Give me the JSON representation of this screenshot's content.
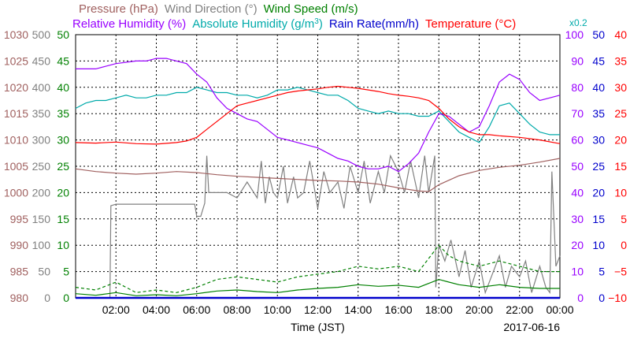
{
  "chart_data": {
    "type": "line",
    "xlabel": "Time (JST)",
    "date": "2017-06-16",
    "x_ticks": [
      "02:00",
      "04:00",
      "06:00",
      "08:00",
      "10:00",
      "12:00",
      "14:00",
      "16:00",
      "18:00",
      "20:00",
      "22:00",
      "00:00"
    ],
    "x_range_hours": [
      0,
      24
    ],
    "grid": true,
    "legend_row1": [
      {
        "name": "Pressure (hPa)",
        "color": "#a0605f"
      },
      {
        "name": "Wind Direction (°)",
        "color": "#808080"
      },
      {
        "name": "Wind Speed (m/s)",
        "color": "#008000"
      }
    ],
    "legend_row2": [
      {
        "name": "Relative Humidity (%)",
        "color": "#9900ff"
      },
      {
        "name": "Absolute Humidity (g/m³)",
        "color": "#00aaaa",
        "base": "Absolute Humidity (g/m",
        "sup": "3",
        "close": ")"
      },
      {
        "name": "Rain Rate(mm/h)",
        "color": "#0000cc"
      },
      {
        "name": "Temperature (°C)",
        "color": "#ff0000"
      }
    ],
    "abs_hum_scale_note": "x0.2",
    "axes": {
      "pressure": {
        "color": "#a0605f",
        "ylim": [
          980,
          1030
        ],
        "ticks": [
          "1030",
          "1025",
          "1020",
          "1015",
          "1010",
          "1005",
          "1000",
          "995",
          "990",
          "985",
          "980"
        ]
      },
      "wind_direction": {
        "color": "#808080",
        "ylim": [
          0,
          500
        ],
        "ticks": [
          "500",
          "450",
          "400",
          "350",
          "300",
          "250",
          "200",
          "150",
          "100",
          "50",
          "0"
        ]
      },
      "wind_speed": {
        "color": "#008000",
        "ylim": [
          0,
          50
        ],
        "ticks": [
          "50",
          "45",
          "40",
          "35",
          "30",
          "25",
          "20",
          "15",
          "10",
          "5",
          "0"
        ]
      },
      "relative_humidity": {
        "color": "#9900ff",
        "ylim": [
          0,
          100
        ],
        "ticks": [
          "100",
          "90",
          "80",
          "70",
          "60",
          "50",
          "40",
          "30",
          "20",
          "10",
          "0"
        ]
      },
      "rain_rate": {
        "color": "#0000cc",
        "ylim": [
          0,
          50
        ],
        "ticks": [
          "50",
          "45",
          "40",
          "35",
          "30",
          "25",
          "20",
          "15",
          "10",
          "5",
          "0"
        ]
      },
      "temperature": {
        "color": "#ff0000",
        "ylim": [
          -10,
          40
        ],
        "ticks": [
          "40",
          "35",
          "30",
          "25",
          "20",
          "15",
          "10",
          "5",
          "0",
          "−5",
          "−10"
        ]
      }
    },
    "series": [
      {
        "name": "Relative Humidity (%)",
        "axis": "relative_humidity",
        "color": "#9900ff",
        "x": [
          0,
          1,
          1.5,
          2,
          3,
          3.5,
          4,
          4.5,
          5,
          5.5,
          6,
          6.5,
          7,
          7.5,
          8,
          8.5,
          9,
          9.5,
          10,
          10.5,
          11,
          11.5,
          12,
          12.5,
          13,
          13.5,
          14,
          14.5,
          15,
          15.5,
          16,
          16.5,
          17,
          17.5,
          18,
          18.5,
          19,
          19.5,
          20,
          20.5,
          21,
          21.5,
          22,
          22.5,
          23,
          23.5,
          24
        ],
        "y": [
          87,
          87,
          88,
          89,
          90,
          90,
          91,
          91,
          90,
          89,
          85,
          82,
          76,
          72,
          70,
          68,
          67,
          64,
          61,
          60,
          59,
          58,
          57,
          55,
          53,
          52,
          50,
          49,
          49,
          50,
          48,
          51,
          55,
          63,
          70,
          69,
          66,
          63,
          65,
          73,
          82,
          85,
          83,
          78,
          75,
          76,
          77
        ]
      },
      {
        "name": "Absolute Humidity (g/m³) x0.2",
        "axis": "relative_humidity",
        "color": "#00aaaa",
        "x": [
          0,
          0.5,
          1,
          1.5,
          2,
          2.5,
          3,
          3.5,
          4,
          4.5,
          5,
          5.5,
          6,
          6.5,
          7,
          7.5,
          8,
          8.5,
          9,
          9.5,
          10,
          10.5,
          11,
          11.5,
          12,
          12.5,
          13,
          13.5,
          14,
          14.5,
          15,
          15.5,
          16,
          16.5,
          17,
          17.5,
          18,
          18.5,
          19,
          19.5,
          20,
          20.5,
          21,
          21.5,
          22,
          22.5,
          23,
          23.5,
          24
        ],
        "y": [
          72,
          74,
          75,
          75,
          76,
          77,
          76,
          76,
          77,
          77,
          78,
          78,
          80,
          79,
          78,
          78,
          77,
          77,
          76,
          77,
          79,
          79,
          80,
          79,
          78,
          77,
          77,
          75,
          72,
          71,
          70,
          71,
          70,
          70,
          69,
          69,
          71,
          67,
          63,
          61,
          59,
          65,
          73,
          74,
          70,
          66,
          63,
          62,
          62
        ]
      },
      {
        "name": "Temperature (°C)",
        "axis": "temperature",
        "color": "#ff0000",
        "x": [
          0,
          1,
          2,
          3,
          4,
          5,
          5.5,
          6,
          6.5,
          7,
          7.5,
          8,
          8.5,
          9,
          9.5,
          10,
          10.5,
          11,
          11.5,
          12,
          12.5,
          13,
          13.5,
          14,
          14.5,
          15,
          15.5,
          16,
          16.5,
          17,
          17.5,
          18,
          18.5,
          19,
          19.5,
          20,
          20.5,
          21,
          22,
          23,
          24
        ],
        "y": [
          19.5,
          19.4,
          19.6,
          19.3,
          19.2,
          19.5,
          19.8,
          20.5,
          22,
          23.5,
          25,
          26.5,
          27,
          27.5,
          28,
          28.5,
          29,
          29.3,
          29.5,
          29.7,
          30,
          30.2,
          30,
          29.8,
          29.5,
          29.2,
          28.8,
          28.5,
          28.3,
          28,
          27.5,
          26,
          24,
          22.5,
          21.5,
          21,
          21,
          20.8,
          20.5,
          20,
          19.3
        ]
      },
      {
        "name": "Pressure (hPa)",
        "axis": "pressure",
        "color": "#a0605f",
        "x": [
          0,
          1,
          2,
          3,
          4,
          5,
          6,
          7,
          8,
          9,
          10,
          11,
          12,
          13,
          14,
          15,
          16,
          17,
          17.5,
          18,
          19,
          20,
          21,
          22,
          23,
          24
        ],
        "y": [
          1004.5,
          1004,
          1003.7,
          1003.5,
          1003.7,
          1004,
          1003.8,
          1003.4,
          1003.1,
          1002.9,
          1002.7,
          1002.5,
          1002.3,
          1002.2,
          1002,
          1001.6,
          1000.9,
          1000.3,
          1000.2,
          1001.5,
          1003.2,
          1004.2,
          1004.8,
          1005.2,
          1005.8,
          1006.5
        ]
      },
      {
        "name": "Wind Direction (°)",
        "axis": "wind_direction",
        "color": "#808080",
        "x": [
          0,
          1.7,
          1.75,
          2,
          3,
          4,
          5,
          5.9,
          6.0,
          6.2,
          6.4,
          6.5,
          6.6,
          6.7,
          7,
          7.5,
          8,
          8.5,
          9,
          9.2,
          9.4,
          9.6,
          9.8,
          10,
          10.3,
          10.5,
          10.8,
          11,
          11.3,
          11.6,
          12,
          12.3,
          12.6,
          13,
          13.3,
          13.6,
          14,
          14.3,
          14.6,
          15,
          15.3,
          15.6,
          16,
          16.3,
          16.6,
          17,
          17.3,
          17.5,
          17.8,
          17.85,
          18,
          18.3,
          18.6,
          19,
          19.3,
          19.6,
          20,
          20.3,
          20.6,
          21,
          21.3,
          21.6,
          22,
          22.3,
          22.6,
          23,
          23.3,
          23.5,
          23.6,
          23.8,
          24
        ],
        "y": [
          0,
          0,
          175,
          178,
          178,
          178,
          178,
          178,
          155,
          155,
          180,
          270,
          200,
          200,
          200,
          200,
          190,
          220,
          190,
          260,
          180,
          230,
          200,
          190,
          250,
          180,
          230,
          190,
          200,
          260,
          170,
          240,
          200,
          220,
          170,
          250,
          200,
          260,
          180,
          240,
          200,
          270,
          240,
          200,
          260,
          190,
          270,
          200,
          270,
          20,
          100,
          70,
          110,
          40,
          90,
          20,
          70,
          10,
          40,
          80,
          20,
          60,
          40,
          70,
          10,
          60,
          20,
          10,
          240,
          60,
          80
        ]
      },
      {
        "name": "Wind Speed (m/s)",
        "axis": "wind_speed",
        "color": "#008000",
        "style": "dashed",
        "x": [
          0,
          1,
          2,
          3,
          4,
          5,
          6,
          7,
          8,
          9,
          10,
          11,
          12,
          13,
          14,
          15,
          16,
          17,
          18,
          18.5,
          19,
          20,
          21,
          22,
          23,
          24
        ],
        "y": [
          2,
          1.5,
          3,
          1,
          1.5,
          1,
          2,
          3.5,
          4,
          3.5,
          3,
          4,
          4.5,
          5,
          6,
          5.5,
          6,
          5,
          10,
          8,
          7,
          6,
          7,
          6,
          5,
          5
        ]
      },
      {
        "name": "Wind Speed (m/s)",
        "axis": "wind_speed",
        "color": "#008000",
        "style": "solid",
        "x": [
          0,
          1,
          2,
          3,
          4,
          5,
          6,
          7,
          8,
          9,
          10,
          11,
          12,
          13,
          14,
          15,
          16,
          17,
          18,
          18.5,
          19,
          20,
          21,
          22,
          23,
          24
        ],
        "y": [
          0.8,
          0.5,
          1,
          0.4,
          0.6,
          0.4,
          0.8,
          1.3,
          1.5,
          1.2,
          1,
          1.5,
          1.8,
          2,
          2.5,
          2.2,
          2.4,
          2,
          3.5,
          3,
          2.5,
          2,
          2.5,
          2,
          1.8,
          1.8
        ]
      },
      {
        "name": "Rain Rate(mm/h)",
        "axis": "rain_rate",
        "color": "#0000cc",
        "x": [
          0,
          24
        ],
        "y": [
          0,
          0
        ]
      }
    ]
  }
}
